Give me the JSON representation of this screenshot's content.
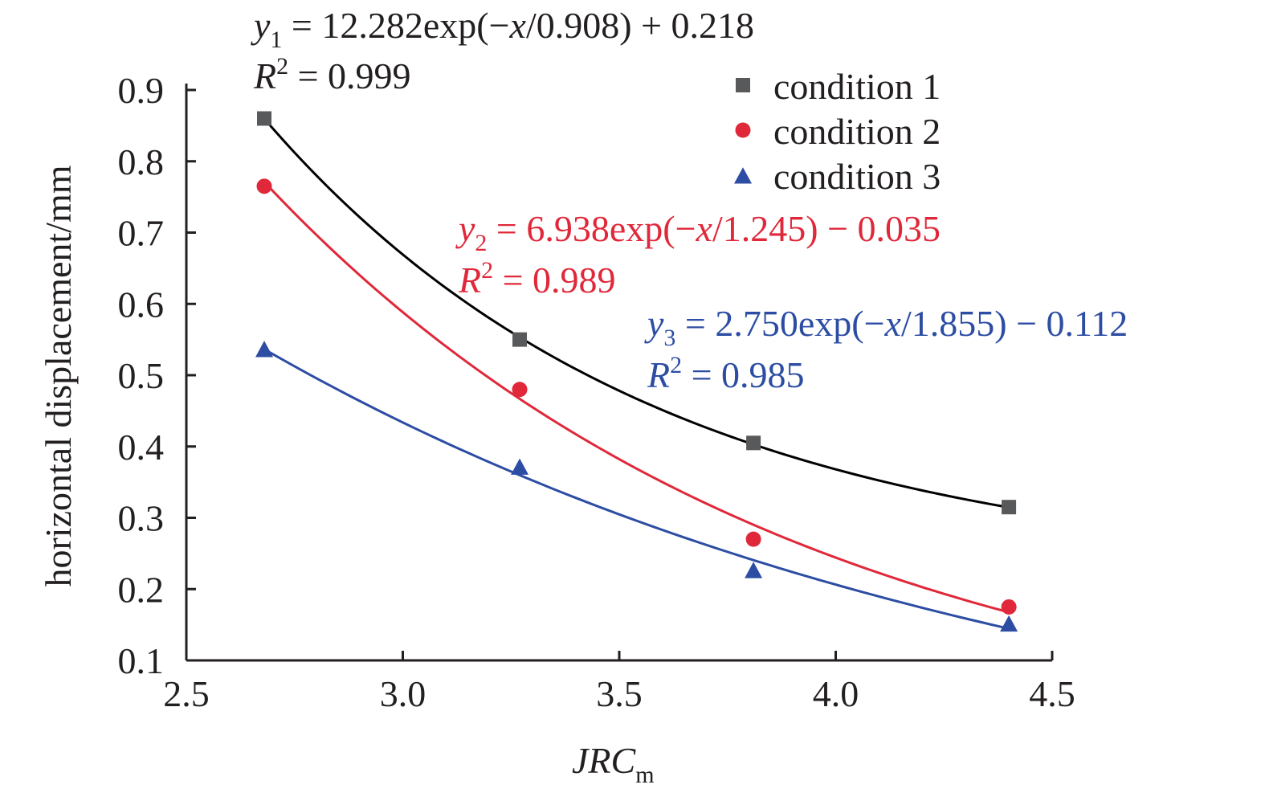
{
  "chart_data": {
    "type": "scatter",
    "title": "",
    "xlabel": "JRC",
    "xlabel_subscript": "m",
    "ylabel": "horizontal displacement/mm",
    "xlim": [
      2.5,
      4.5
    ],
    "ylim": [
      0.1,
      0.9
    ],
    "xticks": [
      "2.5",
      "3.0",
      "3.5",
      "4.0",
      "4.5"
    ],
    "yticks": [
      "0.1",
      "0.2",
      "0.3",
      "0.4",
      "0.5",
      "0.6",
      "0.7",
      "0.8",
      "0.9"
    ],
    "grid": false,
    "legend_position": "top-right",
    "series": [
      {
        "name": "condition 1",
        "marker": "square",
        "color": "#58595b",
        "fit_color": "#000000",
        "x": [
          2.68,
          3.27,
          3.81,
          4.4
        ],
        "y": [
          0.86,
          0.55,
          0.405,
          0.315
        ],
        "fit": {
          "a": 12.282,
          "b": 0.908,
          "c": 0.218
        },
        "equation": {
          "var": "y",
          "sub": "1",
          "rhs_a": " = 12.282exp(−",
          "rhs_x": "x",
          "rhs_b": "/0.908) + 0.218",
          "r2_label": "R",
          "r2_sup": "2",
          "r2_value": " = 0.999"
        }
      },
      {
        "name": "condition 2",
        "marker": "circle",
        "color": "#e0283a",
        "fit_color": "#e0283a",
        "x": [
          2.68,
          3.27,
          3.81,
          4.4
        ],
        "y": [
          0.765,
          0.48,
          0.27,
          0.175
        ],
        "fit": {
          "a": 6.938,
          "b": 1.245,
          "c": -0.035
        },
        "equation": {
          "var": "y",
          "sub": "2",
          "rhs_a": " = 6.938exp(−",
          "rhs_x": "x",
          "rhs_b": "/1.245) − 0.035",
          "r2_label": "R",
          "r2_sup": "2",
          "r2_value": " = 0.989"
        }
      },
      {
        "name": "condition 3",
        "marker": "triangle",
        "color": "#2c4da3",
        "fit_color": "#2c4da3",
        "x": [
          2.68,
          3.27,
          3.81,
          4.4
        ],
        "y": [
          0.535,
          0.37,
          0.225,
          0.15
        ],
        "fit": {
          "a": 2.75,
          "b": 1.855,
          "c": -0.112
        },
        "equation": {
          "var": "y",
          "sub": "3",
          "rhs_a": " = 2.750exp(−",
          "rhs_x": "x",
          "rhs_b": "/1.855) − 0.112",
          "r2_label": "R",
          "r2_sup": "2",
          "r2_value": " = 0.985"
        }
      }
    ]
  }
}
